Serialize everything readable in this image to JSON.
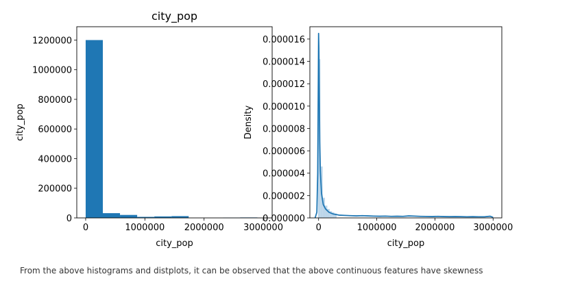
{
  "caption": "From the above histograms and distplots, it can be observed that the above continuous features have skewness",
  "chart_data": [
    {
      "type": "bar",
      "subtype": "histogram",
      "title": "city_pop",
      "xlabel": "city_pop",
      "ylabel": "city_pop",
      "xlim": [
        -150000,
        3150000
      ],
      "ylim": [
        0,
        1290000
      ],
      "xticks": [
        "0",
        "1000000",
        "2000000",
        "3000000"
      ],
      "xtick_values": [
        0,
        1000000,
        2000000,
        3000000
      ],
      "yticks": [
        "0",
        "200000",
        "400000",
        "600000",
        "800000",
        "1000000",
        "1200000"
      ],
      "ytick_values": [
        0,
        200000,
        400000,
        600000,
        800000,
        1000000,
        1200000
      ],
      "bins": [
        {
          "x0": 0,
          "x1": 290000,
          "value": 1200000
        },
        {
          "x0": 290000,
          "x1": 580000,
          "value": 32000
        },
        {
          "x0": 580000,
          "x1": 870000,
          "value": 20000
        },
        {
          "x0": 870000,
          "x1": 1160000,
          "value": 7000
        },
        {
          "x0": 1160000,
          "x1": 1450000,
          "value": 10000
        },
        {
          "x0": 1450000,
          "x1": 1740000,
          "value": 12000
        },
        {
          "x0": 1740000,
          "x1": 2030000,
          "value": 0
        },
        {
          "x0": 2030000,
          "x1": 2320000,
          "value": 0
        },
        {
          "x0": 2320000,
          "x1": 2610000,
          "value": 2000
        },
        {
          "x0": 2610000,
          "x1": 2900000,
          "value": 3000
        }
      ],
      "color": "#1f77b4",
      "grid": false
    },
    {
      "type": "area",
      "subtype": "distplot",
      "xlabel": "city_pop",
      "ylabel": "Density",
      "xlim": [
        -150000,
        3150000
      ],
      "ylim": [
        0,
        1.71e-05
      ],
      "xticks": [
        "0",
        "1000000",
        "2000000",
        "3000000"
      ],
      "xtick_values": [
        0,
        1000000,
        2000000,
        3000000
      ],
      "yticks": [
        "0.000000",
        "0.000002",
        "0.000004",
        "0.000006",
        "0.000008",
        "0.000010",
        "0.000012",
        "0.000014",
        "0.000016"
      ],
      "ytick_values": [
        0,
        2e-06,
        4e-06,
        6e-06,
        8e-06,
        1e-05,
        1.2e-05,
        1.4e-05,
        1.6e-05
      ],
      "hist_bins": [
        {
          "x0": -10000,
          "x1": 30000,
          "value": 1.42e-05
        },
        {
          "x0": 30000,
          "x1": 70000,
          "value": 4.6e-06
        },
        {
          "x0": 70000,
          "x1": 110000,
          "value": 1.8e-06
        },
        {
          "x0": 110000,
          "x1": 150000,
          "value": 1.1e-06
        },
        {
          "x0": 150000,
          "x1": 190000,
          "value": 8e-07
        },
        {
          "x0": 190000,
          "x1": 230000,
          "value": 6e-07
        },
        {
          "x0": 230000,
          "x1": 270000,
          "value": 5e-07
        },
        {
          "x0": 270000,
          "x1": 310000,
          "value": 4e-07
        }
      ],
      "kde_x": [
        -60000,
        -30000,
        -15000,
        -5000,
        0,
        5000,
        10000,
        20000,
        30000,
        50000,
        80000,
        120000,
        180000,
        250000,
        350000,
        450000,
        550000,
        650000,
        750000,
        850000,
        950000,
        1050000,
        1150000,
        1250000,
        1350000,
        1450000,
        1550000,
        1650000,
        1750000,
        1850000,
        1950000,
        2050000,
        2150000,
        2250000,
        2350000,
        2450000,
        2550000,
        2650000,
        2750000,
        2850000,
        2950000,
        3000000
      ],
      "kde_y": [
        0,
        5e-07,
        4e-06,
        1.2e-05,
        1.65e-05,
        1.52e-05,
        1.2e-05,
        6.8e-06,
        4.2e-06,
        2.2e-06,
        1.2e-06,
        8e-07,
        5e-07,
        3.5e-07,
        2.5e-07,
        2.2e-07,
        2e-07,
        1.8e-07,
        2e-07,
        1.8e-07,
        1.6e-07,
        1.5e-07,
        1.6e-07,
        1.4e-07,
        1.5e-07,
        1.4e-07,
        1.8e-07,
        1.6e-07,
        1.4e-07,
        1.3e-07,
        1.2e-07,
        1.4e-07,
        1.2e-07,
        1.1e-07,
        1.2e-07,
        1.1e-07,
        1e-07,
        1.1e-07,
        1e-07,
        1e-07,
        1.5e-07,
        5e-08
      ],
      "line_color": "#1f77b4",
      "fill_color": "#a6c8e3",
      "grid": false
    }
  ]
}
